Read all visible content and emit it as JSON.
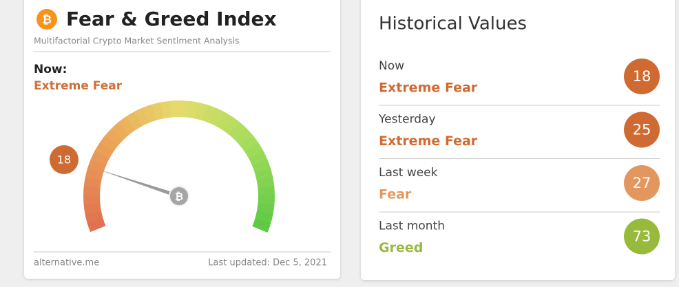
{
  "header": {
    "title": "Fear & Greed Index",
    "subtitle": "Multifactorial Crypto Market Sentiment Analysis"
  },
  "now": {
    "label": "Now:",
    "classification": "Extreme Fear",
    "color": "#d0703a"
  },
  "gauge": {
    "value": 18,
    "min": 0,
    "max": 100,
    "badge_color": "#cf6b32"
  },
  "footer": {
    "source": "alternative.me",
    "updated": "Last updated: Dec 5, 2021"
  },
  "history": {
    "title": "Historical Values",
    "rows": [
      {
        "period": "Now",
        "classification": "Extreme Fear",
        "value": 18,
        "color": "#cf6b32"
      },
      {
        "period": "Yesterday",
        "classification": "Extreme Fear",
        "value": 25,
        "color": "#cf6b32"
      },
      {
        "period": "Last week",
        "classification": "Fear",
        "value": 27,
        "color": "#e3975e"
      },
      {
        "period": "Last month",
        "classification": "Greed",
        "value": 73,
        "color": "#97b93c"
      }
    ]
  }
}
